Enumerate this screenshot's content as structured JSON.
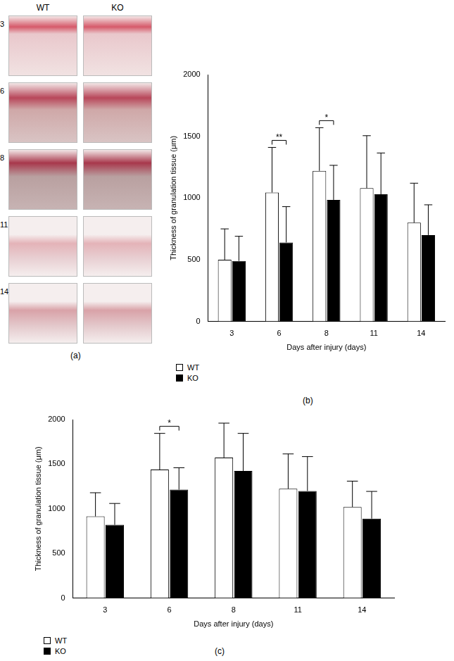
{
  "panel_a": {
    "label": "(a)",
    "columns": [
      "WT",
      "KO"
    ],
    "rows": [
      "3",
      "6",
      "8",
      "11",
      "14"
    ]
  },
  "chart_data": [
    {
      "type": "bar",
      "panel_label": "(b)",
      "x_label": "Days after injury (days)",
      "y_label": "Thickness of granulation tissue (μm)",
      "categories": [
        "3",
        "6",
        "8",
        "11",
        "14"
      ],
      "series": [
        {
          "name": "WT",
          "color": "#ffffff",
          "values": [
            500,
            1045,
            1220,
            1080,
            800
          ],
          "errors": [
            250,
            365,
            350,
            425,
            320
          ]
        },
        {
          "name": "KO",
          "color": "#000000",
          "values": [
            490,
            640,
            985,
            1030,
            700
          ],
          "errors": [
            200,
            290,
            280,
            335,
            245
          ]
        }
      ],
      "significance": [
        {
          "category": "6",
          "label": "**"
        },
        {
          "category": "8",
          "label": "*"
        }
      ],
      "ylim": [
        0,
        2000
      ],
      "yticks": [
        0,
        500,
        1000,
        1500,
        2000
      ],
      "grid": false,
      "legend": "bottom"
    },
    {
      "type": "bar",
      "panel_label": "(c)",
      "x_label": "Days after injury (days)",
      "y_label": "Thickness of granulation tissue (μm)",
      "categories": [
        "3",
        "6",
        "8",
        "11",
        "14"
      ],
      "series": [
        {
          "name": "WT",
          "color": "#ffffff",
          "values": [
            915,
            1440,
            1575,
            1225,
            1020
          ],
          "errors": [
            265,
            405,
            385,
            390,
            290
          ]
        },
        {
          "name": "KO",
          "color": "#000000",
          "values": [
            820,
            1215,
            1425,
            1200,
            890
          ],
          "errors": [
            240,
            245,
            420,
            385,
            305
          ]
        }
      ],
      "significance": [
        {
          "category": "6",
          "label": "*"
        }
      ],
      "ylim": [
        0,
        2000
      ],
      "yticks": [
        0,
        500,
        1000,
        1500,
        2000
      ],
      "grid": false,
      "legend": "bottom"
    }
  ]
}
